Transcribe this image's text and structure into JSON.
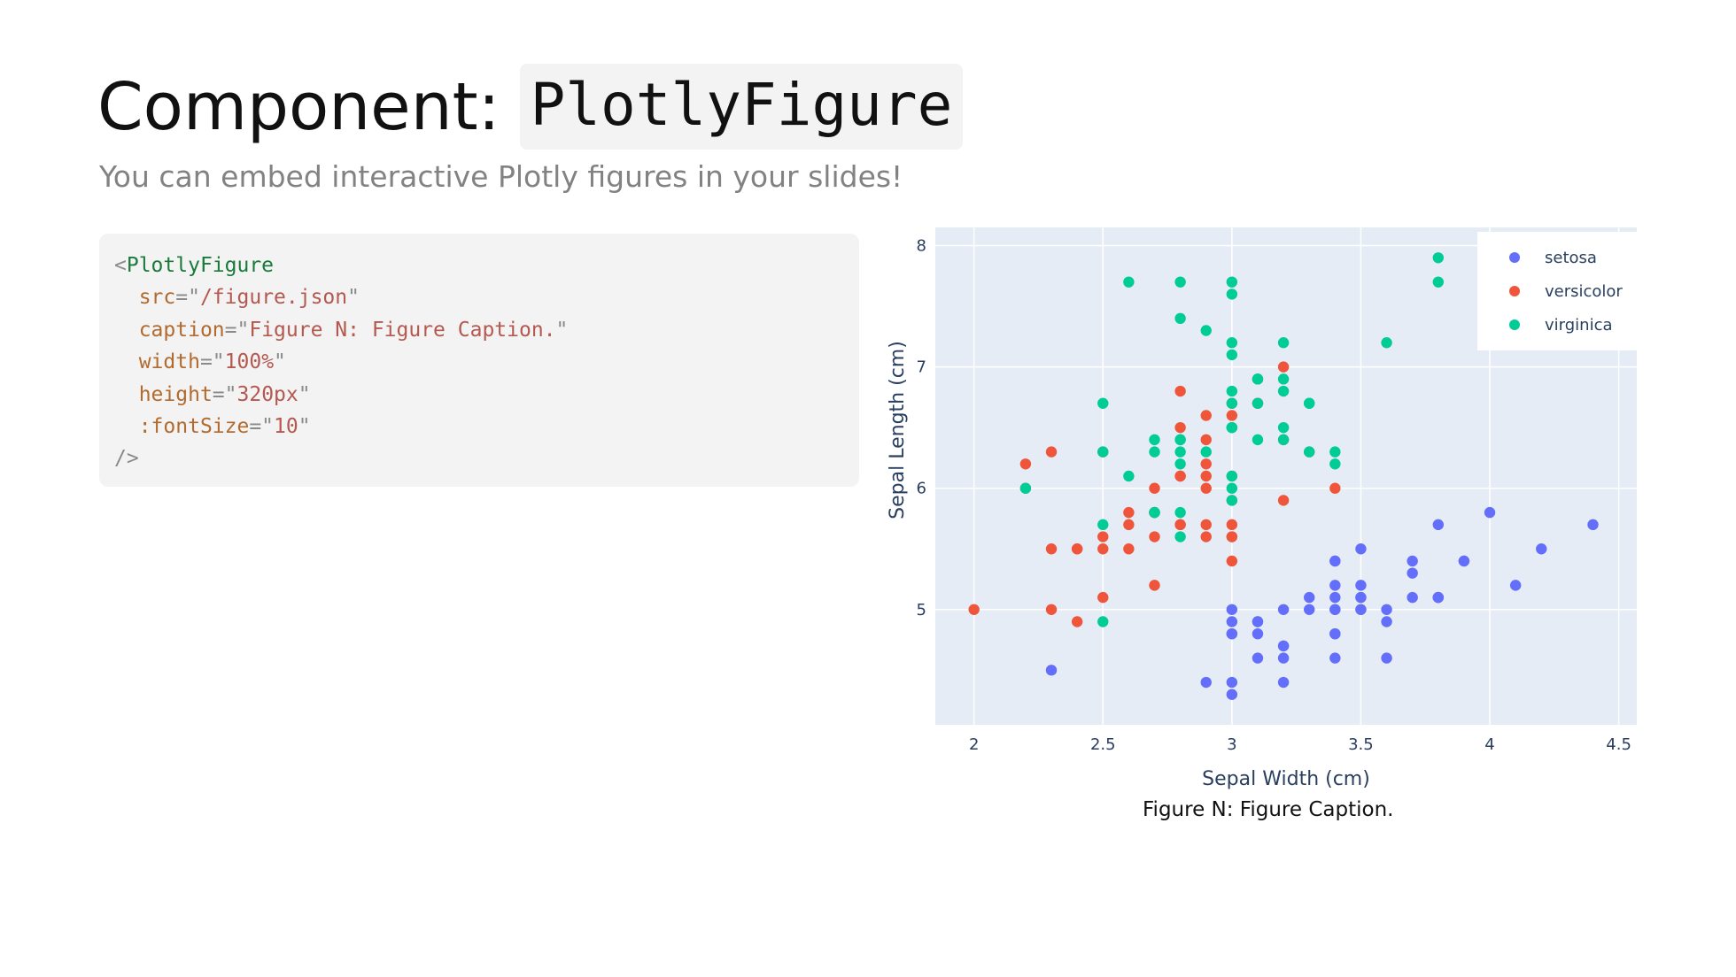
{
  "slide": {
    "title_prefix": "Component:",
    "title_code": "PlotlyFigure",
    "subtitle": "You can embed interactive Plotly figures in your slides!"
  },
  "code": {
    "lines": [
      [
        {
          "t": "<",
          "c": "punct"
        },
        {
          "t": "PlotlyFigure",
          "c": "tag"
        }
      ],
      [
        {
          "t": "  ",
          "c": "punct"
        },
        {
          "t": "src",
          "c": "attr"
        },
        {
          "t": "=\"",
          "c": "punct"
        },
        {
          "t": "/figure.json",
          "c": "str"
        },
        {
          "t": "\"",
          "c": "punct"
        }
      ],
      [
        {
          "t": "  ",
          "c": "punct"
        },
        {
          "t": "caption",
          "c": "attr"
        },
        {
          "t": "=\"",
          "c": "punct"
        },
        {
          "t": "Figure N: Figure Caption.",
          "c": "str"
        },
        {
          "t": "\"",
          "c": "punct"
        }
      ],
      [
        {
          "t": "  ",
          "c": "punct"
        },
        {
          "t": "width",
          "c": "attr"
        },
        {
          "t": "=\"",
          "c": "punct"
        },
        {
          "t": "100%",
          "c": "str"
        },
        {
          "t": "\"",
          "c": "punct"
        }
      ],
      [
        {
          "t": "  ",
          "c": "punct"
        },
        {
          "t": "height",
          "c": "attr"
        },
        {
          "t": "=\"",
          "c": "punct"
        },
        {
          "t": "320px",
          "c": "str"
        },
        {
          "t": "\"",
          "c": "punct"
        }
      ],
      [
        {
          "t": "  ",
          "c": "punct"
        },
        {
          "t": ":fontSize",
          "c": "attr"
        },
        {
          "t": "=\"",
          "c": "punct"
        },
        {
          "t": "10",
          "c": "str"
        },
        {
          "t": "\"",
          "c": "punct"
        }
      ],
      [
        {
          "t": "/>",
          "c": "punct"
        }
      ]
    ]
  },
  "caption": "Figure N: Figure Caption.",
  "chart_data": {
    "type": "scatter",
    "title": "",
    "xlabel": "Sepal Width (cm)",
    "ylabel": "Sepal Length (cm)",
    "xlim": [
      1.85,
      4.57
    ],
    "ylim": [
      4.05,
      8.15
    ],
    "xticks": [
      "2",
      "2.5",
      "3",
      "3.5",
      "4",
      "4.5"
    ],
    "yticks": [
      "5",
      "6",
      "7",
      "8"
    ],
    "grid": true,
    "legend_position": "top-right",
    "plot_bgcolor": "#e5ecf6",
    "series": [
      {
        "name": "setosa",
        "color": "#636efa",
        "points": [
          [
            3.5,
            5.1
          ],
          [
            3.0,
            4.9
          ],
          [
            3.2,
            4.7
          ],
          [
            3.1,
            4.6
          ],
          [
            3.6,
            5.0
          ],
          [
            3.9,
            5.4
          ],
          [
            3.4,
            4.6
          ],
          [
            3.4,
            5.0
          ],
          [
            2.9,
            4.4
          ],
          [
            3.1,
            4.9
          ],
          [
            3.7,
            5.4
          ],
          [
            3.4,
            4.8
          ],
          [
            3.0,
            4.8
          ],
          [
            3.0,
            4.3
          ],
          [
            4.0,
            5.8
          ],
          [
            4.4,
            5.7
          ],
          [
            3.9,
            5.4
          ],
          [
            3.5,
            5.1
          ],
          [
            3.8,
            5.7
          ],
          [
            3.8,
            5.1
          ],
          [
            3.4,
            5.4
          ],
          [
            3.7,
            5.1
          ],
          [
            3.6,
            4.6
          ],
          [
            3.3,
            5.1
          ],
          [
            3.4,
            4.8
          ],
          [
            3.0,
            5.0
          ],
          [
            3.4,
            5.0
          ],
          [
            3.5,
            5.2
          ],
          [
            3.4,
            5.2
          ],
          [
            3.2,
            4.7
          ],
          [
            3.1,
            4.8
          ],
          [
            3.4,
            5.4
          ],
          [
            4.1,
            5.2
          ],
          [
            4.2,
            5.5
          ],
          [
            3.1,
            4.9
          ],
          [
            3.2,
            5.0
          ],
          [
            3.5,
            5.5
          ],
          [
            3.6,
            4.9
          ],
          [
            3.0,
            4.4
          ],
          [
            3.4,
            5.1
          ],
          [
            3.5,
            5.0
          ],
          [
            2.3,
            4.5
          ],
          [
            3.2,
            4.4
          ],
          [
            3.5,
            5.0
          ],
          [
            3.8,
            5.1
          ],
          [
            3.0,
            4.8
          ],
          [
            3.8,
            5.1
          ],
          [
            3.2,
            4.6
          ],
          [
            3.7,
            5.3
          ],
          [
            3.3,
            5.0
          ]
        ]
      },
      {
        "name": "versicolor",
        "color": "#ef553b",
        "points": [
          [
            3.2,
            7.0
          ],
          [
            3.2,
            6.4
          ],
          [
            3.1,
            6.9
          ],
          [
            2.3,
            5.5
          ],
          [
            2.8,
            6.5
          ],
          [
            2.8,
            5.7
          ],
          [
            3.3,
            6.3
          ],
          [
            2.4,
            4.9
          ],
          [
            2.9,
            6.6
          ],
          [
            2.7,
            5.2
          ],
          [
            2.0,
            5.0
          ],
          [
            3.0,
            5.9
          ],
          [
            2.2,
            6.0
          ],
          [
            2.9,
            6.1
          ],
          [
            2.9,
            5.6
          ],
          [
            3.1,
            6.7
          ],
          [
            3.0,
            5.6
          ],
          [
            2.7,
            5.8
          ],
          [
            2.2,
            6.2
          ],
          [
            2.5,
            5.6
          ],
          [
            3.2,
            5.9
          ],
          [
            2.8,
            6.1
          ],
          [
            2.5,
            6.3
          ],
          [
            2.8,
            6.1
          ],
          [
            2.9,
            6.4
          ],
          [
            3.0,
            6.6
          ],
          [
            2.8,
            6.8
          ],
          [
            3.0,
            6.7
          ],
          [
            2.9,
            6.0
          ],
          [
            2.6,
            5.7
          ],
          [
            2.4,
            5.5
          ],
          [
            2.4,
            5.5
          ],
          [
            2.7,
            5.8
          ],
          [
            2.7,
            6.0
          ],
          [
            3.0,
            5.4
          ],
          [
            3.4,
            6.0
          ],
          [
            3.1,
            6.7
          ],
          [
            2.3,
            6.3
          ],
          [
            3.0,
            5.6
          ],
          [
            2.5,
            5.5
          ],
          [
            2.6,
            5.5
          ],
          [
            3.0,
            6.1
          ],
          [
            2.6,
            5.8
          ],
          [
            2.3,
            5.0
          ],
          [
            2.7,
            5.6
          ],
          [
            3.0,
            5.7
          ],
          [
            2.9,
            5.7
          ],
          [
            2.9,
            6.2
          ],
          [
            2.5,
            5.1
          ],
          [
            2.8,
            5.7
          ]
        ]
      },
      {
        "name": "virginica",
        "color": "#00cc96",
        "points": [
          [
            3.3,
            6.3
          ],
          [
            2.7,
            5.8
          ],
          [
            3.0,
            7.1
          ],
          [
            2.9,
            6.3
          ],
          [
            3.0,
            6.5
          ],
          [
            3.0,
            7.6
          ],
          [
            2.5,
            4.9
          ],
          [
            2.9,
            7.3
          ],
          [
            2.5,
            6.7
          ],
          [
            3.6,
            7.2
          ],
          [
            3.2,
            6.5
          ],
          [
            2.7,
            6.4
          ],
          [
            3.0,
            6.8
          ],
          [
            2.5,
            5.7
          ],
          [
            2.8,
            5.8
          ],
          [
            3.2,
            6.4
          ],
          [
            3.0,
            6.5
          ],
          [
            3.8,
            7.7
          ],
          [
            2.6,
            7.7
          ],
          [
            2.2,
            6.0
          ],
          [
            3.2,
            6.9
          ],
          [
            2.8,
            5.6
          ],
          [
            2.8,
            7.7
          ],
          [
            2.7,
            6.3
          ],
          [
            3.3,
            6.7
          ],
          [
            3.2,
            7.2
          ],
          [
            2.8,
            6.2
          ],
          [
            3.0,
            6.1
          ],
          [
            2.8,
            6.4
          ],
          [
            3.0,
            7.2
          ],
          [
            2.8,
            7.4
          ],
          [
            3.8,
            7.9
          ],
          [
            2.8,
            6.4
          ],
          [
            2.8,
            6.3
          ],
          [
            2.6,
            6.1
          ],
          [
            3.0,
            7.7
          ],
          [
            3.4,
            6.3
          ],
          [
            3.1,
            6.4
          ],
          [
            3.0,
            6.0
          ],
          [
            3.1,
            6.9
          ],
          [
            3.1,
            6.7
          ],
          [
            3.1,
            6.9
          ],
          [
            2.7,
            5.8
          ],
          [
            3.2,
            6.8
          ],
          [
            3.3,
            6.7
          ],
          [
            3.0,
            6.7
          ],
          [
            2.5,
            6.3
          ],
          [
            3.0,
            6.5
          ],
          [
            3.4,
            6.2
          ],
          [
            3.0,
            5.9
          ]
        ]
      }
    ]
  }
}
